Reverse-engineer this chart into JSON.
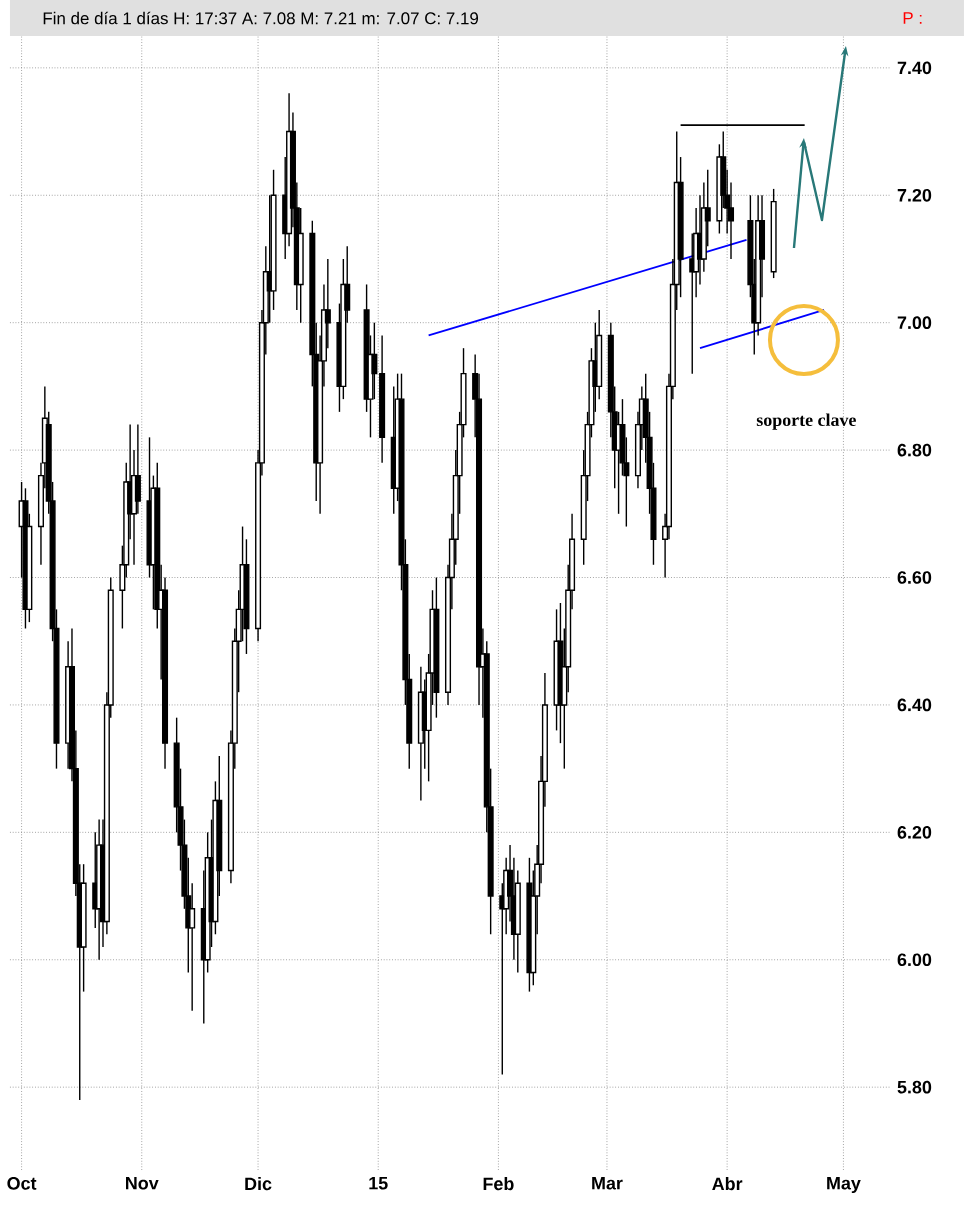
{
  "chart_data": {
    "type": "candlestick",
    "title": "Fin de día 1 días H: 17:37 A: 7.08 M: 7.21 m: 7.07 C: 7.19",
    "annotations": [
      "soporte clave",
      "P :"
    ],
    "x": [
      "2014-10-01",
      "2014-10-02",
      "2014-10-03",
      "2014-10-06",
      "2014-10-07",
      "2014-10-08",
      "2014-10-09",
      "2014-10-10",
      "2014-10-13",
      "2014-10-14",
      "2014-10-15",
      "2014-10-16",
      "2014-10-17",
      "2014-10-20",
      "2014-10-21",
      "2014-10-22",
      "2014-10-23",
      "2014-10-24",
      "2014-10-27",
      "2014-10-28",
      "2014-10-29",
      "2014-10-30",
      "2014-10-31",
      "2014-11-03",
      "2014-11-04",
      "2014-11-05",
      "2014-11-06",
      "2014-11-07",
      "2014-11-10",
      "2014-11-11",
      "2014-11-12",
      "2014-11-13",
      "2014-11-14",
      "2014-11-17",
      "2014-11-18",
      "2014-11-19",
      "2014-11-20",
      "2014-11-21",
      "2014-11-24",
      "2014-11-25",
      "2014-11-26",
      "2014-11-27",
      "2014-11-28",
      "2014-12-01",
      "2014-12-02",
      "2014-12-03",
      "2014-12-04",
      "2014-12-05",
      "2014-12-08",
      "2014-12-09",
      "2014-12-10",
      "2014-12-11",
      "2014-12-12",
      "2014-12-15",
      "2014-12-16",
      "2014-12-17",
      "2014-12-18",
      "2014-12-19",
      "2014-12-22",
      "2014-12-23",
      "2014-12-24",
      "2014-12-29",
      "2014-12-30",
      "2014-12-31",
      "2015-01-02",
      "2015-01-05",
      "2015-01-06",
      "2015-01-07",
      "2015-01-08",
      "2015-01-09",
      "2015-01-12",
      "2015-01-13",
      "2015-01-14",
      "2015-01-15",
      "2015-01-16",
      "2015-01-19",
      "2015-01-20",
      "2015-01-21",
      "2015-01-22",
      "2015-01-23",
      "2015-01-26",
      "2015-01-27",
      "2015-01-28",
      "2015-01-29",
      "2015-01-30",
      "2015-02-02",
      "2015-02-03",
      "2015-02-04",
      "2015-02-05",
      "2015-02-06",
      "2015-02-09",
      "2015-02-10",
      "2015-02-11",
      "2015-02-12",
      "2015-02-13",
      "2015-02-16",
      "2015-02-17",
      "2015-02-18",
      "2015-02-19",
      "2015-02-20",
      "2015-02-23",
      "2015-02-24",
      "2015-02-25",
      "2015-02-26",
      "2015-02-27",
      "2015-03-02",
      "2015-03-03",
      "2015-03-04",
      "2015-03-05",
      "2015-03-06",
      "2015-03-09",
      "2015-03-10",
      "2015-03-11",
      "2015-03-12",
      "2015-03-13",
      "2015-03-16",
      "2015-03-17",
      "2015-03-18",
      "2015-03-19",
      "2015-03-20",
      "2015-03-23",
      "2015-03-24",
      "2015-03-25",
      "2015-03-26",
      "2015-03-27",
      "2015-03-30",
      "2015-03-31",
      "2015-04-01",
      "2015-04-02",
      "2015-04-07",
      "2015-04-08",
      "2015-04-09",
      "2015-04-10",
      "2015-04-13"
    ],
    "ohlc": [
      [
        6.68,
        6.75,
        6.6,
        6.72
      ],
      [
        6.72,
        6.74,
        6.52,
        6.55
      ],
      [
        6.55,
        6.7,
        6.53,
        6.68
      ],
      [
        6.68,
        6.78,
        6.62,
        6.76
      ],
      [
        6.78,
        6.9,
        6.74,
        6.85
      ],
      [
        6.84,
        6.86,
        6.7,
        6.72
      ],
      [
        6.72,
        6.75,
        6.5,
        6.52
      ],
      [
        6.52,
        6.55,
        6.3,
        6.34
      ],
      [
        6.34,
        6.5,
        6.3,
        6.46
      ],
      [
        6.46,
        6.52,
        6.28,
        6.3
      ],
      [
        6.3,
        6.36,
        6.1,
        6.12
      ],
      [
        6.12,
        6.15,
        5.78,
        6.02
      ],
      [
        6.02,
        6.15,
        5.95,
        6.12
      ],
      [
        6.12,
        6.2,
        6.05,
        6.08
      ],
      [
        6.08,
        6.22,
        6.0,
        6.18
      ],
      [
        6.18,
        6.22,
        6.02,
        6.06
      ],
      [
        6.06,
        6.42,
        6.04,
        6.4
      ],
      [
        6.4,
        6.6,
        6.38,
        6.58
      ],
      [
        6.58,
        6.65,
        6.52,
        6.62
      ],
      [
        6.62,
        6.78,
        6.6,
        6.75
      ],
      [
        6.75,
        6.84,
        6.66,
        6.7
      ],
      [
        6.7,
        6.8,
        6.62,
        6.76
      ],
      [
        6.76,
        6.84,
        6.7,
        6.72
      ],
      [
        6.72,
        6.82,
        6.6,
        6.62
      ],
      [
        6.62,
        6.76,
        6.55,
        6.74
      ],
      [
        6.74,
        6.78,
        6.52,
        6.55
      ],
      [
        6.55,
        6.62,
        6.44,
        6.58
      ],
      [
        6.58,
        6.6,
        6.3,
        6.34
      ],
      [
        6.34,
        6.38,
        6.2,
        6.24
      ],
      [
        6.24,
        6.3,
        6.14,
        6.18
      ],
      [
        6.18,
        6.22,
        6.08,
        6.1
      ],
      [
        6.1,
        6.16,
        5.98,
        6.05
      ],
      [
        6.05,
        6.12,
        5.92,
        6.08
      ],
      [
        6.08,
        6.14,
        5.9,
        6.0
      ],
      [
        6.0,
        6.2,
        5.98,
        6.16
      ],
      [
        6.16,
        6.22,
        6.02,
        6.06
      ],
      [
        6.06,
        6.28,
        6.04,
        6.25
      ],
      [
        6.25,
        6.32,
        6.1,
        6.14
      ],
      [
        6.14,
        6.36,
        6.12,
        6.34
      ],
      [
        6.34,
        6.52,
        6.3,
        6.5
      ],
      [
        6.5,
        6.58,
        6.42,
        6.55
      ],
      [
        6.55,
        6.68,
        6.5,
        6.62
      ],
      [
        6.62,
        6.66,
        6.48,
        6.52
      ],
      [
        6.52,
        6.8,
        6.5,
        6.78
      ],
      [
        6.78,
        7.02,
        6.76,
        7.0
      ],
      [
        7.0,
        7.12,
        6.95,
        7.08
      ],
      [
        7.08,
        7.2,
        7.0,
        7.05
      ],
      [
        7.05,
        7.24,
        7.02,
        7.2
      ],
      [
        7.2,
        7.26,
        7.1,
        7.14
      ],
      [
        7.14,
        7.36,
        7.12,
        7.3
      ],
      [
        7.3,
        7.33,
        7.15,
        7.18
      ],
      [
        7.18,
        7.22,
        7.02,
        7.06
      ],
      [
        7.06,
        7.18,
        7.0,
        7.14
      ],
      [
        7.14,
        7.16,
        6.9,
        6.95
      ],
      [
        6.95,
        7.0,
        6.72,
        6.78
      ],
      [
        6.78,
        6.98,
        6.7,
        6.94
      ],
      [
        6.94,
        7.06,
        6.9,
        7.02
      ],
      [
        7.02,
        7.1,
        6.96,
        7.0
      ],
      [
        7.0,
        7.03,
        6.86,
        6.9
      ],
      [
        6.9,
        7.1,
        6.88,
        7.06
      ],
      [
        7.06,
        7.12,
        7.0,
        7.02
      ],
      [
        7.02,
        7.06,
        6.86,
        6.88
      ],
      [
        6.88,
        6.98,
        6.82,
        6.95
      ],
      [
        6.95,
        7.0,
        6.88,
        6.92
      ],
      [
        6.92,
        6.98,
        6.78,
        6.82
      ],
      [
        6.82,
        6.9,
        6.7,
        6.74
      ],
      [
        6.74,
        6.92,
        6.72,
        6.88
      ],
      [
        6.88,
        6.92,
        6.58,
        6.62
      ],
      [
        6.62,
        6.66,
        6.4,
        6.44
      ],
      [
        6.44,
        6.48,
        6.3,
        6.34
      ],
      [
        6.34,
        6.46,
        6.25,
        6.42
      ],
      [
        6.42,
        6.44,
        6.3,
        6.36
      ],
      [
        6.36,
        6.48,
        6.28,
        6.45
      ],
      [
        6.45,
        6.58,
        6.4,
        6.55
      ],
      [
        6.55,
        6.6,
        6.38,
        6.42
      ],
      [
        6.42,
        6.62,
        6.4,
        6.6
      ],
      [
        6.6,
        6.7,
        6.55,
        6.66
      ],
      [
        6.66,
        6.8,
        6.62,
        6.76
      ],
      [
        6.76,
        6.86,
        6.7,
        6.84
      ],
      [
        6.84,
        6.96,
        6.82,
        6.92
      ],
      [
        6.92,
        6.95,
        6.82,
        6.88
      ],
      [
        6.88,
        6.92,
        6.4,
        6.46
      ],
      [
        6.46,
        6.52,
        6.38,
        6.48
      ],
      [
        6.48,
        6.5,
        6.2,
        6.24
      ],
      [
        6.24,
        6.3,
        6.04,
        6.1
      ],
      [
        6.1,
        6.12,
        5.82,
        6.08
      ],
      [
        6.08,
        6.16,
        6.04,
        6.14
      ],
      [
        6.14,
        6.18,
        6.06,
        6.1
      ],
      [
        6.1,
        6.16,
        6.0,
        6.04
      ],
      [
        6.04,
        6.14,
        5.98,
        6.12
      ],
      [
        6.12,
        6.16,
        5.95,
        5.98
      ],
      [
        5.98,
        6.14,
        5.96,
        6.1
      ],
      [
        6.1,
        6.18,
        6.04,
        6.15
      ],
      [
        6.15,
        6.32,
        6.12,
        6.28
      ],
      [
        6.28,
        6.45,
        6.24,
        6.4
      ],
      [
        6.4,
        6.55,
        6.36,
        6.5
      ],
      [
        6.5,
        6.56,
        6.34,
        6.4
      ],
      [
        6.4,
        6.52,
        6.3,
        6.46
      ],
      [
        6.46,
        6.62,
        6.42,
        6.58
      ],
      [
        6.58,
        6.7,
        6.55,
        6.66
      ],
      [
        6.66,
        6.8,
        6.62,
        6.76
      ],
      [
        6.76,
        6.86,
        6.72,
        6.84
      ],
      [
        6.84,
        6.96,
        6.82,
        6.94
      ],
      [
        6.94,
        7.0,
        6.86,
        6.9
      ],
      [
        6.9,
        7.02,
        6.88,
        6.98
      ],
      [
        6.98,
        7.0,
        6.82,
        6.86
      ],
      [
        6.86,
        6.9,
        6.74,
        6.8
      ],
      [
        6.8,
        6.86,
        6.7,
        6.84
      ],
      [
        6.84,
        6.88,
        6.76,
        6.78
      ],
      [
        6.78,
        6.82,
        6.68,
        6.76
      ],
      [
        6.76,
        6.86,
        6.74,
        6.84
      ],
      [
        6.84,
        6.9,
        6.8,
        6.88
      ],
      [
        6.88,
        6.92,
        6.78,
        6.82
      ],
      [
        6.82,
        6.86,
        6.7,
        6.74
      ],
      [
        6.74,
        6.78,
        6.62,
        6.66
      ],
      [
        6.66,
        6.7,
        6.6,
        6.68
      ],
      [
        6.68,
        6.92,
        6.66,
        6.9
      ],
      [
        6.9,
        7.1,
        6.88,
        7.06
      ],
      [
        7.06,
        7.3,
        7.02,
        7.22
      ],
      [
        7.22,
        7.26,
        7.04,
        7.1
      ],
      [
        7.1,
        7.14,
        6.92,
        7.08
      ],
      [
        7.08,
        7.18,
        7.04,
        7.14
      ],
      [
        7.14,
        7.2,
        7.06,
        7.1
      ],
      [
        7.1,
        7.22,
        7.08,
        7.18
      ],
      [
        7.18,
        7.24,
        7.12,
        7.16
      ],
      [
        7.16,
        7.28,
        7.14,
        7.26
      ],
      [
        7.26,
        7.3,
        7.18,
        7.2
      ],
      [
        7.2,
        7.24,
        7.14,
        7.18
      ],
      [
        7.18,
        7.22,
        7.1,
        7.16
      ],
      [
        7.16,
        7.2,
        7.04,
        7.06
      ],
      [
        7.06,
        7.1,
        6.95,
        7.0
      ],
      [
        7.0,
        7.2,
        6.98,
        7.16
      ],
      [
        7.16,
        7.2,
        7.04,
        7.1
      ],
      [
        7.08,
        7.21,
        7.07,
        7.19
      ]
    ],
    "series": [
      {
        "type": "line",
        "color": "#0000ff",
        "x": [
          "2015-01-14",
          "2015-04-06"
        ],
        "values": [
          6.98,
          7.13
        ]
      },
      {
        "type": "line",
        "color": "#0000ff",
        "x": [
          "2015-03-25",
          "2015-04-26"
        ],
        "values": [
          6.96,
          7.02
        ]
      },
      {
        "type": "line",
        "color": "#000000",
        "x": [
          "2015-03-20",
          "2015-04-21"
        ],
        "values": [
          7.31,
          7.31
        ]
      }
    ],
    "xlim": [
      "2014-09-28",
      "2015-05-13"
    ],
    "xticks": [
      {
        "value": "2014-10-01",
        "label": "Oct"
      },
      {
        "value": "2014-11-01",
        "label": "Nov"
      },
      {
        "value": "2014-12-01",
        "label": "Dic"
      },
      {
        "value": "2015-01-01",
        "label": "15"
      },
      {
        "value": "2015-02-01",
        "label": "Feb"
      },
      {
        "value": "2015-03-01",
        "label": "Mar"
      },
      {
        "value": "2015-04-01",
        "label": "Abr"
      },
      {
        "value": "2015-05-01",
        "label": "May"
      }
    ],
    "ylim": [
      5.67,
      7.45
    ],
    "yticks": [
      {
        "value": 5.8,
        "label": "5.80"
      },
      {
        "value": 6.0,
        "label": "6.00"
      },
      {
        "value": 6.2,
        "label": "6.20"
      },
      {
        "value": 6.4,
        "label": "6.40"
      },
      {
        "value": 6.6,
        "label": "6.60"
      },
      {
        "value": 6.8,
        "label": "6.80"
      },
      {
        "value": 7.0,
        "label": "7.00"
      },
      {
        "value": 7.2,
        "label": "7.20"
      },
      {
        "value": 7.4,
        "label": "7.40"
      }
    ],
    "grid": true
  }
}
